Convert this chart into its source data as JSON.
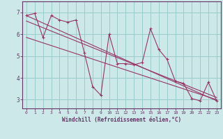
{
  "xlabel": "Windchill (Refroidissement éolien,°C)",
  "bg_color": "#cce8e8",
  "line_color": "#993366",
  "grid_color": "#99cccc",
  "axis_color": "#663366",
  "spine_color": "#663366",
  "xlim": [
    -0.5,
    23.5
  ],
  "ylim": [
    2.6,
    7.5
  ],
  "xticks": [
    0,
    1,
    2,
    3,
    4,
    5,
    6,
    7,
    8,
    9,
    10,
    11,
    12,
    13,
    14,
    15,
    16,
    17,
    18,
    19,
    20,
    21,
    22,
    23
  ],
  "yticks": [
    3,
    4,
    5,
    6,
    7
  ],
  "series1_x": [
    0,
    1,
    2,
    3,
    4,
    5,
    6,
    7,
    8,
    9,
    10,
    11,
    12,
    13,
    14,
    15,
    16,
    17,
    18,
    19,
    20,
    21,
    22,
    23
  ],
  "series1_y": [
    6.85,
    6.95,
    5.85,
    6.85,
    6.65,
    6.55,
    6.65,
    5.15,
    3.6,
    3.2,
    6.0,
    4.65,
    4.65,
    4.6,
    4.7,
    6.25,
    5.3,
    4.85,
    3.85,
    3.75,
    3.05,
    2.95,
    3.8,
    2.95
  ],
  "line2_x0": 0,
  "line2_y0": 6.85,
  "line2_x1": 23,
  "line2_y1": 2.95,
  "line3_x0": 0,
  "line3_y0": 6.6,
  "line3_x1": 23,
  "line3_y1": 3.1,
  "line4_x0": 0,
  "line4_y0": 5.85,
  "line4_x1": 23,
  "line4_y1": 3.0
}
